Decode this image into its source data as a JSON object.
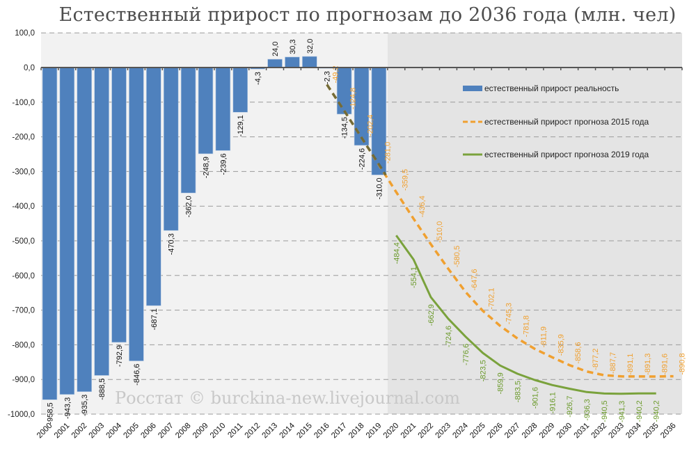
{
  "title": "Естественный прирост по прогнозам до 2036 года (млн. чел)",
  "watermark": "Росстат © burckina-new.livejournal.com",
  "colors": {
    "bars": "#4f81bd",
    "forecast_2015": "#f0a030",
    "forecast_2019": "#7aa23c",
    "overlap_line": "#4a5a3a",
    "plot_bg_actual": "#f2f2f2",
    "plot_bg_forecast": "#e4e4e4",
    "grid": "#9a9a9a"
  },
  "legend": {
    "items": [
      {
        "label": "естественный прирост реальность",
        "type": "bar"
      },
      {
        "label": "естественный прирост прогноза 2015 года",
        "type": "dashed-line"
      },
      {
        "label": "естественный прирост прогноза 2019 года",
        "type": "line"
      }
    ]
  },
  "chart_data": {
    "type": "bar",
    "title": "Естественный прирост по прогнозам до 2036 года (млн. чел)",
    "xlabel": "",
    "ylabel": "",
    "ylim": [
      -1000,
      100
    ],
    "yticks": [
      "100,0",
      "0,0",
      "-100,0",
      "-200,0",
      "-300,0",
      "-400,0",
      "-500,0",
      "-600,0",
      "-700,0",
      "-800,0",
      "-900,0",
      "-1000,0"
    ],
    "grid": true,
    "legend_position": "right-inside",
    "categories": [
      "2000",
      "2001",
      "2002",
      "2003",
      "2004",
      "2005",
      "2006",
      "2007",
      "2008",
      "2009",
      "2010",
      "2011",
      "2012",
      "2013",
      "2014",
      "2015",
      "2016",
      "2017",
      "2018",
      "2019",
      "2020",
      "2021",
      "2022",
      "2023",
      "2024",
      "2025",
      "2026",
      "2027",
      "2028",
      "2029",
      "2030",
      "2031",
      "2032",
      "2033",
      "2034",
      "2035",
      "2036"
    ],
    "series": [
      {
        "name": "естественный прирост реальность",
        "type": "bar",
        "values": [
          -958.5,
          -943.3,
          -935.3,
          -888.5,
          -792.9,
          -846.6,
          -687.1,
          -470.3,
          -362.0,
          -248.9,
          -239.6,
          -129.1,
          -4.3,
          24.0,
          30.3,
          32.0,
          -2.3,
          -134.5,
          -224.6,
          -310.0,
          null,
          null,
          null,
          null,
          null,
          null,
          null,
          null,
          null,
          null,
          null,
          null,
          null,
          null,
          null,
          null,
          null
        ],
        "labels": [
          "-958,5",
          "-943,3",
          "-935,3",
          "-888,5",
          "-792,9",
          "-846,6",
          "-687,1",
          "-470,3",
          "-362,0",
          "-248,9",
          "-239,6",
          "-129,1",
          "-4,3",
          "24,0",
          "30,3",
          "32,0",
          "-2,3",
          "-134,5",
          "-224,6",
          "-310,0"
        ]
      },
      {
        "name": "естественный прирост прогноза 2015 года",
        "type": "line-dashed",
        "values": [
          null,
          null,
          null,
          null,
          null,
          null,
          null,
          null,
          null,
          null,
          null,
          null,
          null,
          null,
          null,
          null,
          -49.2,
          -124.8,
          -202.4,
          -281.0,
          -359.5,
          -436.4,
          -510.0,
          -580.5,
          -647.6,
          -702.1,
          -745.3,
          -781.8,
          -811.9,
          -835.9,
          -858.6,
          -877.2,
          -887.7,
          -891.1,
          -891.3,
          -891.6,
          -890.8
        ],
        "labels": [
          "-49,2",
          "-124,8",
          "-202,4",
          "-281,0",
          "-359,5",
          "-436,4",
          "-510,0",
          "-580,5",
          "-647,6",
          "-702,1",
          "-745,3",
          "-781,8",
          "-811,9",
          "-835,9",
          "-858,6",
          "-877,2",
          "-887,7",
          "-891,1",
          "-891,3",
          "-891,6",
          "-890,8"
        ]
      },
      {
        "name": "естественный прирост прогноза 2019 года",
        "type": "line",
        "values": [
          null,
          null,
          null,
          null,
          null,
          null,
          null,
          null,
          null,
          null,
          null,
          null,
          null,
          null,
          null,
          null,
          null,
          null,
          null,
          null,
          -484.4,
          -554.1,
          -662.9,
          -724.6,
          -776.6,
          -823.5,
          -859.9,
          -883.5,
          -901.6,
          -916.1,
          -926.7,
          -936.3,
          -940.5,
          -941.3,
          -940.2,
          -940.2,
          null
        ],
        "labels": [
          "-484,4",
          "-554,1",
          "-662,9",
          "-724,6",
          "-776,6",
          "-823,5",
          "-859,9",
          "-883,5",
          "-901,6",
          "-916,1",
          "-926,7",
          "-936,3",
          "-940,5",
          "-941,3",
          "-940,2",
          "-940,2"
        ]
      }
    ]
  }
}
